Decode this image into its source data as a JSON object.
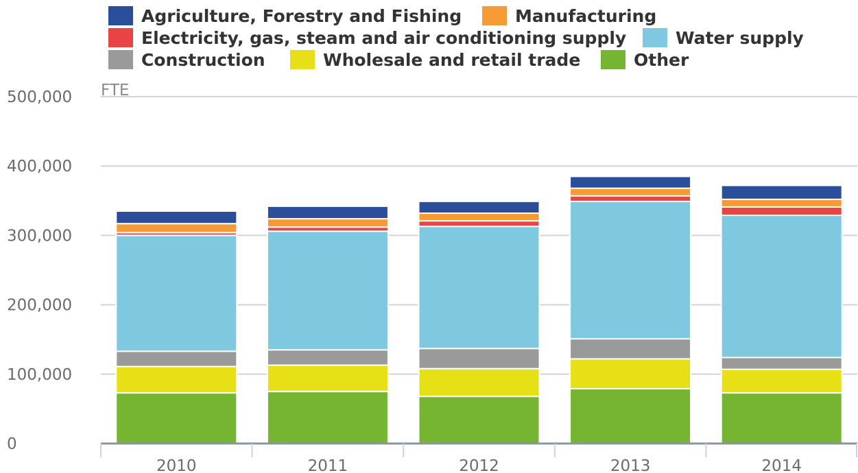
{
  "chart_data": {
    "type": "bar",
    "stacked": true,
    "unit_label": "FTE",
    "categories": [
      "2010",
      "2011",
      "2012",
      "2013",
      "2014"
    ],
    "ylim": [
      0,
      500000
    ],
    "yticks": [
      0,
      100000,
      200000,
      300000,
      400000,
      500000
    ],
    "ytick_labels": [
      "0",
      "100,000",
      "200,000",
      "300,000",
      "400,000",
      "500,000"
    ],
    "grid": true,
    "legend_position": "top",
    "series": [
      {
        "name": "Other",
        "color": "#76b531",
        "values": [
          73000,
          75000,
          68000,
          79000,
          73000
        ]
      },
      {
        "name": "Wholesale and retail trade",
        "color": "#e8e017",
        "values": [
          38000,
          38000,
          40000,
          43000,
          34000
        ]
      },
      {
        "name": "Construction",
        "color": "#9a9a9a",
        "values": [
          22000,
          22000,
          29000,
          29000,
          17000
        ]
      },
      {
        "name": "Water supply",
        "color": "#7ec8e0",
        "values": [
          167000,
          171000,
          176000,
          198000,
          205000
        ]
      },
      {
        "name": "Electricity, gas, steam and air conditioning supply",
        "color": "#e84345",
        "values": [
          4000,
          6000,
          8000,
          8000,
          12000
        ]
      },
      {
        "name": "Manufacturing",
        "color": "#f59a35",
        "values": [
          13000,
          12000,
          11000,
          11000,
          11000
        ]
      },
      {
        "name": "Agriculture, Forestry and Fishing",
        "color": "#2b4e9b",
        "values": [
          18000,
          18000,
          17000,
          17000,
          20000
        ]
      }
    ]
  }
}
